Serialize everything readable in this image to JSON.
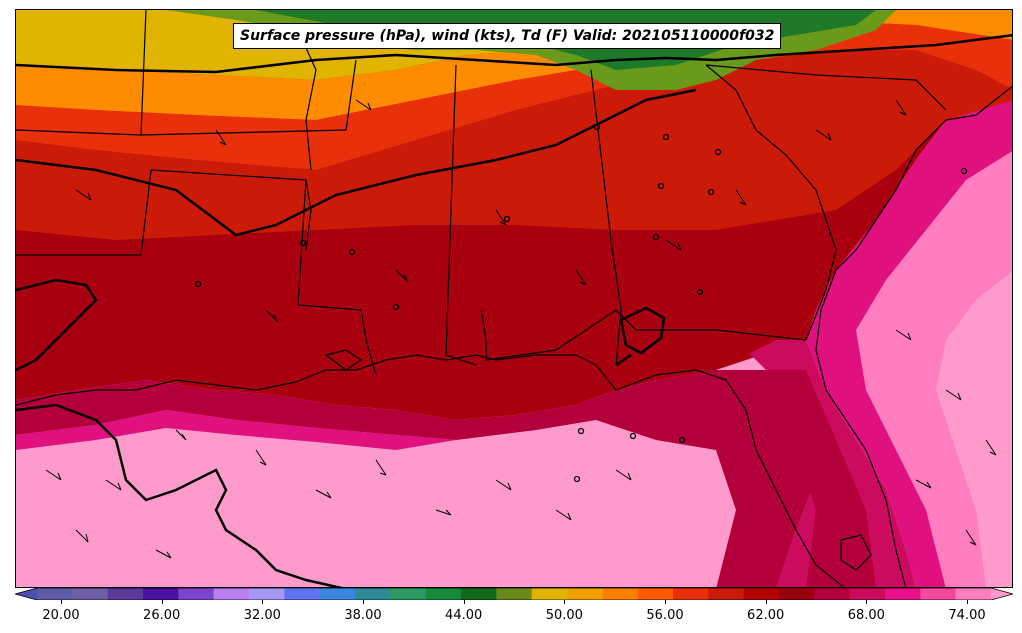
{
  "title": "Surface pressure (hPa), wind (kts), Td (F) Valid: 202105110000f032",
  "colorbar": {
    "min": 20,
    "max": 74,
    "tick_labels": [
      "20.00",
      "26.00",
      "32.00",
      "38.00",
      "44.00",
      "50.00",
      "56.00",
      "62.00",
      "68.00",
      "74.00"
    ],
    "colors": [
      "#4a4fb0",
      "#5e5aa8",
      "#6e5fa8",
      "#5a3a9a",
      "#4a12a2",
      "#7a44cf",
      "#b97ef0",
      "#a697f7",
      "#5e72f2",
      "#3a86e0",
      "#2e8a99",
      "#2e9a62",
      "#168a3a",
      "#0f6b1a",
      "#6a8a1a",
      "#e0b400",
      "#f2a000",
      "#ff7f00",
      "#ff5a00",
      "#e8300a",
      "#cc1a08",
      "#b30000",
      "#99000e",
      "#b3003a",
      "#cc0a5e",
      "#e81088",
      "#f2489e",
      "#ff7ec0",
      "#ff9acc"
    ]
  },
  "map": {
    "fill_colors": {
      "green_north": "#1e7a28",
      "olive": "#6a9a1a",
      "yellow": "#e0b400",
      "orange": "#ff8c00",
      "red_orange": "#e8300a",
      "red": "#cc1a08",
      "dark_red": "#a8000e",
      "crimson": "#b3003a",
      "magenta": "#e0107e",
      "pink": "#ff7ec0",
      "light_pink": "#ff9acc"
    }
  }
}
